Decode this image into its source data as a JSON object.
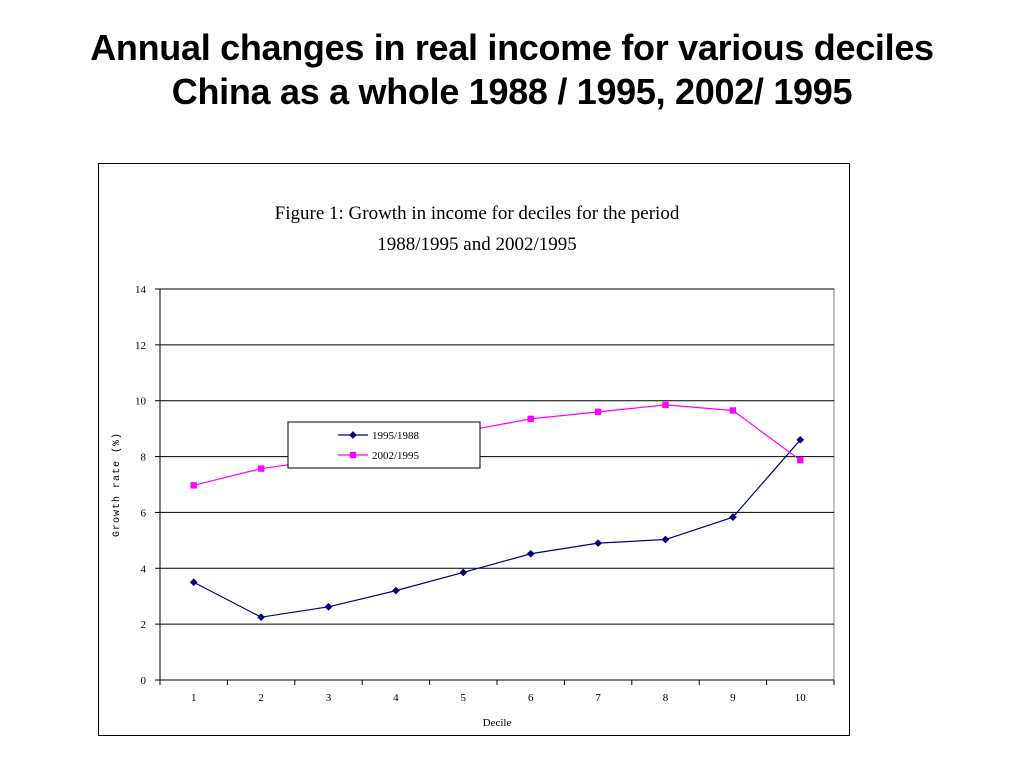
{
  "slide": {
    "title": "Annual changes in real income for various deciles China as a whole 1988 / 1995, 2002/ 1995"
  },
  "chart_data": {
    "type": "line",
    "title_lines": [
      "Figure 1: Growth in income for deciles for the period",
      "1988/1995 and 2002/1995"
    ],
    "xlabel": "Decile",
    "ylabel": "Growth rate (%)",
    "categories": [
      "1",
      "2",
      "3",
      "4",
      "5",
      "6",
      "7",
      "8",
      "9",
      "10"
    ],
    "ylim": [
      0,
      14
    ],
    "yticks": [
      0,
      2,
      4,
      6,
      8,
      10,
      12,
      14
    ],
    "grid": true,
    "legend_position": "upper-left-center",
    "series": [
      {
        "name": "1995/1988",
        "color": "#000080",
        "marker": "diamond",
        "values": [
          3.5,
          2.25,
          2.62,
          3.2,
          3.85,
          4.52,
          4.9,
          5.03,
          5.83,
          8.6
        ]
      },
      {
        "name": "2002/1995",
        "color": "#ff00ff",
        "marker": "square",
        "values": [
          6.97,
          7.57,
          7.9,
          8.4,
          8.9,
          9.35,
          9.6,
          9.85,
          9.65,
          7.87
        ]
      }
    ]
  }
}
